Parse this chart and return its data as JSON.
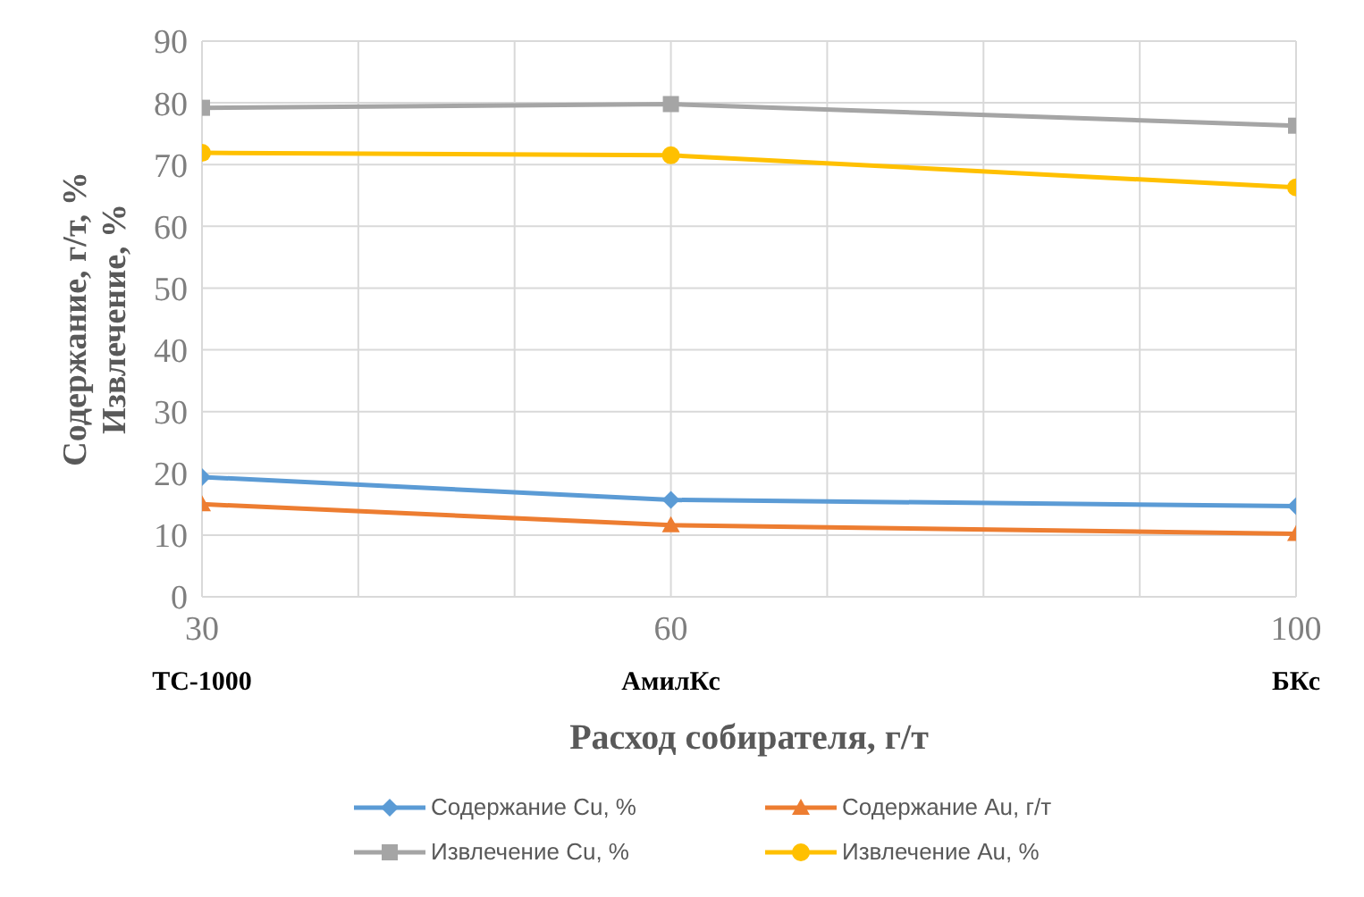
{
  "chart_data": {
    "type": "line",
    "xlabel": "Расход собирателя, г/т",
    "ylabel": "Содержание, г/т, %\nИзвлечение, %",
    "x": [
      30,
      60,
      100
    ],
    "xlim": [
      30,
      100
    ],
    "xticks": [
      30,
      {
        "value": 40,
        "label": null
      },
      {
        "value": 50,
        "label": null
      },
      60,
      {
        "value": 70,
        "label": null
      },
      {
        "value": 80,
        "label": null
      },
      {
        "value": 90,
        "label": null
      },
      100
    ],
    "ylim": [
      0,
      90
    ],
    "yticks": [
      0,
      10,
      20,
      30,
      40,
      50,
      60,
      70,
      80,
      90
    ],
    "grid": true,
    "legend": "bottom",
    "line_style": "solid",
    "annotations": [
      "ТС-1000",
      "АмилКс",
      "БКс"
    ],
    "series": [
      {
        "name": "Содержание Cu, %",
        "color": "#5b9bd5",
        "marker": "diamond",
        "values": [
          19.4,
          15.7,
          14.7
        ]
      },
      {
        "name": "Содержание Au, г/т",
        "color": "#ed7d31",
        "marker": "triangle",
        "values": [
          15.0,
          11.6,
          10.2
        ]
      },
      {
        "name": "Извлечение Cu, %",
        "color": "#a5a5a5",
        "marker": "square",
        "values": [
          79.2,
          79.8,
          76.3
        ]
      },
      {
        "name": "Извлечение Au, %",
        "color": "#ffc000",
        "marker": "circle",
        "values": [
          71.9,
          71.5,
          66.3
        ]
      }
    ]
  }
}
